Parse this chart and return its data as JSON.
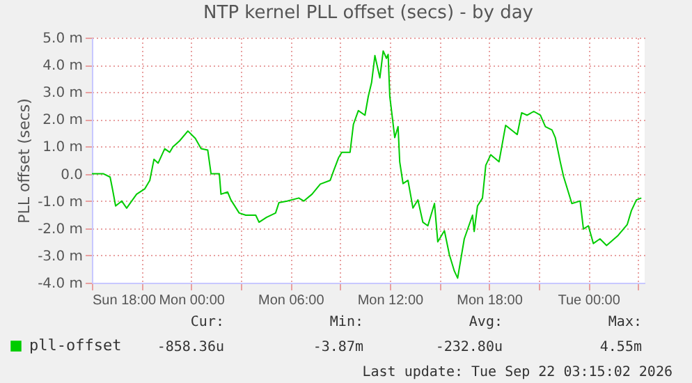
{
  "chart_data": {
    "type": "line",
    "title": "NTP kernel PLL offset (secs) - by day",
    "ylabel": "PLL offset (secs)",
    "x": [
      "2026-09-20T18:00",
      "2026-09-20T18:42",
      "2026-09-20T19:06",
      "2026-09-20T19:15",
      "2026-09-20T19:26",
      "2026-09-20T19:48",
      "2026-09-20T20:06",
      "2026-09-20T20:42",
      "2026-09-20T21:12",
      "2026-09-20T21:30",
      "2026-09-20T21:45",
      "2026-09-20T22:00",
      "2026-09-20T22:24",
      "2026-09-20T22:42",
      "2026-09-20T22:54",
      "2026-09-20T23:18",
      "2026-09-20T23:48",
      "2026-09-21T00:15",
      "2026-09-21T00:36",
      "2026-09-21T01:00",
      "2026-09-21T01:12",
      "2026-09-21T01:42",
      "2026-09-21T01:48",
      "2026-09-21T02:12",
      "2026-09-21T02:24",
      "2026-09-21T02:54",
      "2026-09-21T03:18",
      "2026-09-21T03:54",
      "2026-09-21T04:06",
      "2026-09-21T04:33",
      "2026-09-21T05:06",
      "2026-09-21T05:18",
      "2026-09-21T05:48",
      "2026-09-21T06:30",
      "2026-09-21T06:48",
      "2026-09-21T07:18",
      "2026-09-21T07:48",
      "2026-09-21T08:24",
      "2026-09-21T08:36",
      "2026-09-21T08:54",
      "2026-09-21T09:06",
      "2026-09-21T09:36",
      "2026-09-21T09:48",
      "2026-09-21T10:06",
      "2026-09-21T10:30",
      "2026-09-21T10:42",
      "2026-09-21T10:54",
      "2026-09-21T11:06",
      "2026-09-21T11:24",
      "2026-09-21T11:36",
      "2026-09-21T11:48",
      "2026-09-21T11:54",
      "2026-09-21T12:00",
      "2026-09-21T12:18",
      "2026-09-21T12:30",
      "2026-09-21T12:36",
      "2026-09-21T12:48",
      "2026-09-21T13:06",
      "2026-09-21T13:24",
      "2026-09-21T13:42",
      "2026-09-21T14:00",
      "2026-09-21T14:18",
      "2026-09-21T14:42",
      "2026-09-21T14:54",
      "2026-09-21T15:18",
      "2026-09-21T15:36",
      "2026-09-21T15:54",
      "2026-09-21T16:06",
      "2026-09-21T16:30",
      "2026-09-21T17:00",
      "2026-09-21T17:06",
      "2026-09-21T17:18",
      "2026-09-21T17:36",
      "2026-09-21T17:48",
      "2026-09-21T18:06",
      "2026-09-21T18:36",
      "2026-09-21T19:00",
      "2026-09-21T19:42",
      "2026-09-21T19:58",
      "2026-09-21T20:18",
      "2026-09-21T20:42",
      "2026-09-21T21:06",
      "2026-09-21T21:24",
      "2026-09-21T21:48",
      "2026-09-21T22:00",
      "2026-09-21T22:18",
      "2026-09-21T22:30",
      "2026-09-21T23:00",
      "2026-09-21T23:30",
      "2026-09-21T23:42",
      "2026-09-22T00:00",
      "2026-09-22T00:18",
      "2026-09-22T00:42",
      "2026-09-22T01:06",
      "2026-09-22T01:48",
      "2026-09-22T02:21",
      "2026-09-22T02:36",
      "2026-09-22T02:54",
      "2026-09-22T03:12"
    ],
    "series": [
      {
        "name": "pll-offset",
        "color": "#00cc00",
        "values": [
          0.0,
          0.0,
          -0.12,
          -0.58,
          -1.18,
          -1.0,
          -1.26,
          -0.75,
          -0.55,
          -0.24,
          0.53,
          0.39,
          0.92,
          0.79,
          0.99,
          1.21,
          1.57,
          1.3,
          0.92,
          0.87,
          0.0,
          0.0,
          -0.75,
          -0.67,
          -0.96,
          -1.44,
          -1.52,
          -1.52,
          -1.78,
          -1.6,
          -1.44,
          -1.06,
          -1.0,
          -0.89,
          -1.0,
          -0.75,
          -0.38,
          -0.24,
          0.1,
          0.58,
          0.79,
          0.79,
          1.81,
          2.32,
          2.15,
          2.84,
          3.35,
          4.34,
          3.52,
          4.51,
          4.24,
          4.38,
          2.84,
          1.33,
          1.73,
          0.44,
          -0.36,
          -0.24,
          -1.26,
          -0.96,
          -1.78,
          -1.91,
          -1.09,
          -2.5,
          -2.09,
          -2.97,
          -3.57,
          -3.83,
          -2.39,
          -1.52,
          -2.12,
          -1.18,
          -0.89,
          0.31,
          0.7,
          0.44,
          1.78,
          1.44,
          2.24,
          2.15,
          2.29,
          2.15,
          1.73,
          1.61,
          1.33,
          0.44,
          -0.1,
          -1.09,
          -1.0,
          -2.03,
          -1.91,
          -2.56,
          -2.39,
          -2.63,
          -2.26,
          -1.86,
          -1.35,
          -0.96,
          -0.89
        ]
      }
    ],
    "xlim": [
      "2026-09-20T18:00",
      "2026-09-22T03:24"
    ],
    "xticks": [
      {
        "value": "2026-09-20T18:00",
        "label": "Sun 18:00"
      },
      {
        "value": "2026-09-20T21:00",
        "label": null
      },
      {
        "value": "2026-09-21T00:00",
        "label": "Mon 00:00"
      },
      {
        "value": "2026-09-21T03:00",
        "label": null
      },
      {
        "value": "2026-09-21T06:00",
        "label": "Mon 06:00"
      },
      {
        "value": "2026-09-21T09:00",
        "label": null
      },
      {
        "value": "2026-09-21T12:00",
        "label": "Mon 12:00"
      },
      {
        "value": "2026-09-21T15:00",
        "label": null
      },
      {
        "value": "2026-09-21T18:00",
        "label": "Mon 18:00"
      },
      {
        "value": "2026-09-21T21:00",
        "label": null
      },
      {
        "value": "2026-09-22T00:00",
        "label": "Tue 00:00"
      },
      {
        "value": "2026-09-22T03:00",
        "label": null
      }
    ],
    "ylim": [
      -4,
      5
    ],
    "yticks": [
      {
        "value": -4,
        "label": "-4.0 m"
      },
      {
        "value": -3,
        "label": "-3.0 m"
      },
      {
        "value": -2,
        "label": "-2.0 m"
      },
      {
        "value": -1,
        "label": "-1.0 m"
      },
      {
        "value": 0,
        "label": "0.0"
      },
      {
        "value": 1,
        "label": "1.0 m"
      },
      {
        "value": 2,
        "label": "2.0 m"
      },
      {
        "value": 3,
        "label": "3.0 m"
      },
      {
        "value": 4,
        "label": "4.0 m"
      },
      {
        "value": 5,
        "label": "5.0 m"
      }
    ],
    "grid": true,
    "legend": "bottom left",
    "marker": "none",
    "line_style": "solid",
    "annotations": [
      "Cur:",
      "-858.36u",
      "Min:",
      "-3.87m",
      "Avg:",
      "-232.80u",
      "Max:",
      "4.55m",
      "Last update: Tue Sep 22 03:15:02 2026"
    ]
  }
}
